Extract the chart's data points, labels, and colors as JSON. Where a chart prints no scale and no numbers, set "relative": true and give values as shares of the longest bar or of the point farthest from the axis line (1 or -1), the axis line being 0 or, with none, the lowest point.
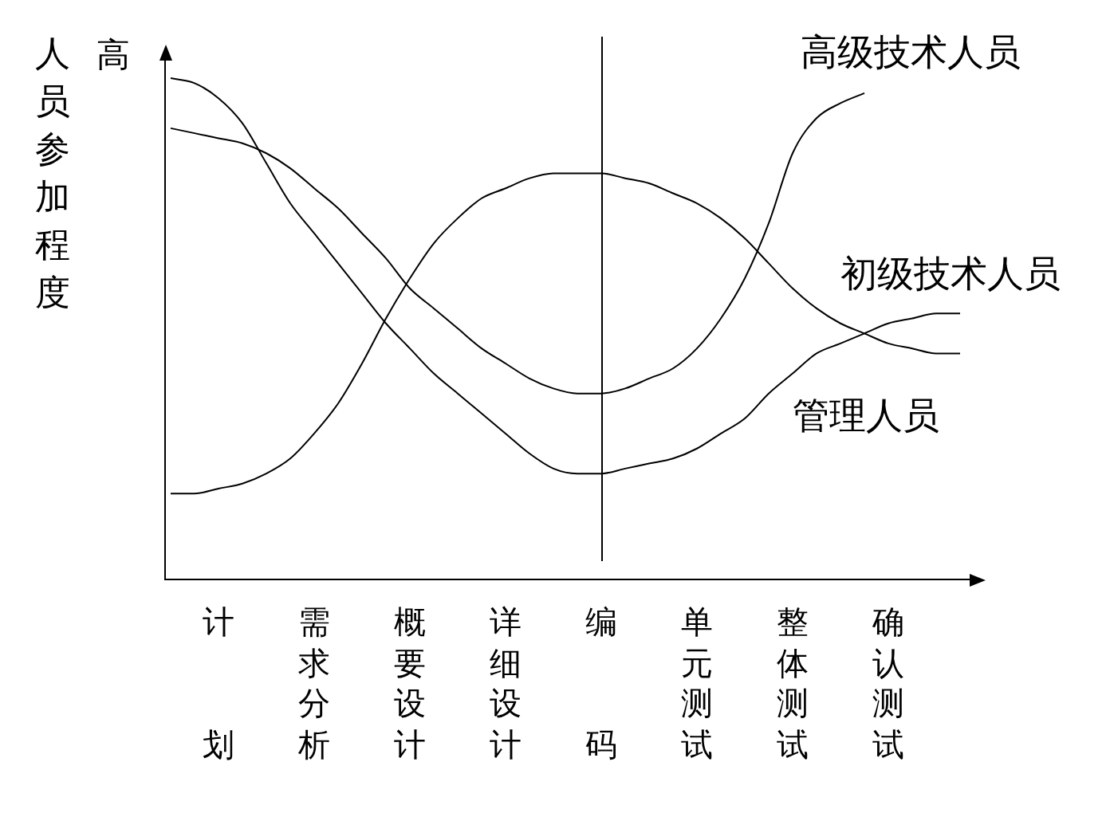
{
  "chart_data": {
    "type": "line",
    "relative": true,
    "ylabel": "人员参加程度",
    "annotations": [
      "高"
    ],
    "categories": [
      null,
      null,
      "计划",
      null,
      null,
      null,
      "需求分析",
      null,
      null,
      null,
      "概要设计",
      null,
      null,
      null,
      "详细设计",
      null,
      null,
      null,
      "编码",
      null,
      null,
      null,
      "单元测试",
      null,
      null,
      null,
      "整体测试",
      null,
      null,
      null,
      "确认测试",
      null,
      null,
      null
    ],
    "ref_lines": [
      {
        "axis": "x",
        "value": "编码",
        "color": "#000000"
      }
    ],
    "series": [
      {
        "name": "高级技术人员",
        "color": "#000000",
        "values": [
          0.9,
          0.89,
          0.88,
          0.87,
          0.85,
          0.82,
          0.78,
          0.74,
          0.69,
          0.64,
          0.58,
          0.54,
          0.5,
          0.46,
          0.43,
          0.4,
          0.38,
          0.37,
          0.37,
          0.38,
          0.4,
          0.42,
          0.46,
          0.52,
          0.6,
          0.71,
          0.85,
          0.92,
          0.95,
          0.97,
          null,
          null,
          null,
          null
        ]
      },
      {
        "name": "初级技术人员",
        "color": "#000000",
        "values": [
          0.17,
          0.17,
          0.18,
          0.19,
          0.21,
          0.24,
          0.29,
          0.35,
          0.43,
          0.52,
          0.6,
          0.67,
          0.72,
          0.76,
          0.78,
          0.8,
          0.81,
          0.81,
          0.81,
          0.8,
          0.79,
          0.77,
          0.75,
          0.72,
          0.68,
          0.63,
          0.58,
          0.54,
          0.51,
          0.49,
          0.47,
          0.46,
          0.45,
          0.45
        ]
      },
      {
        "name": "管理人员",
        "color": "#000000",
        "values": [
          1.0,
          0.99,
          0.96,
          0.91,
          0.83,
          0.75,
          0.69,
          0.63,
          0.57,
          0.51,
          0.46,
          0.41,
          0.37,
          0.33,
          0.29,
          0.25,
          0.22,
          0.21,
          0.21,
          0.22,
          0.23,
          0.24,
          0.26,
          0.29,
          0.32,
          0.37,
          0.41,
          0.45,
          0.47,
          0.49,
          0.51,
          0.52,
          0.53,
          0.53
        ]
      }
    ]
  }
}
